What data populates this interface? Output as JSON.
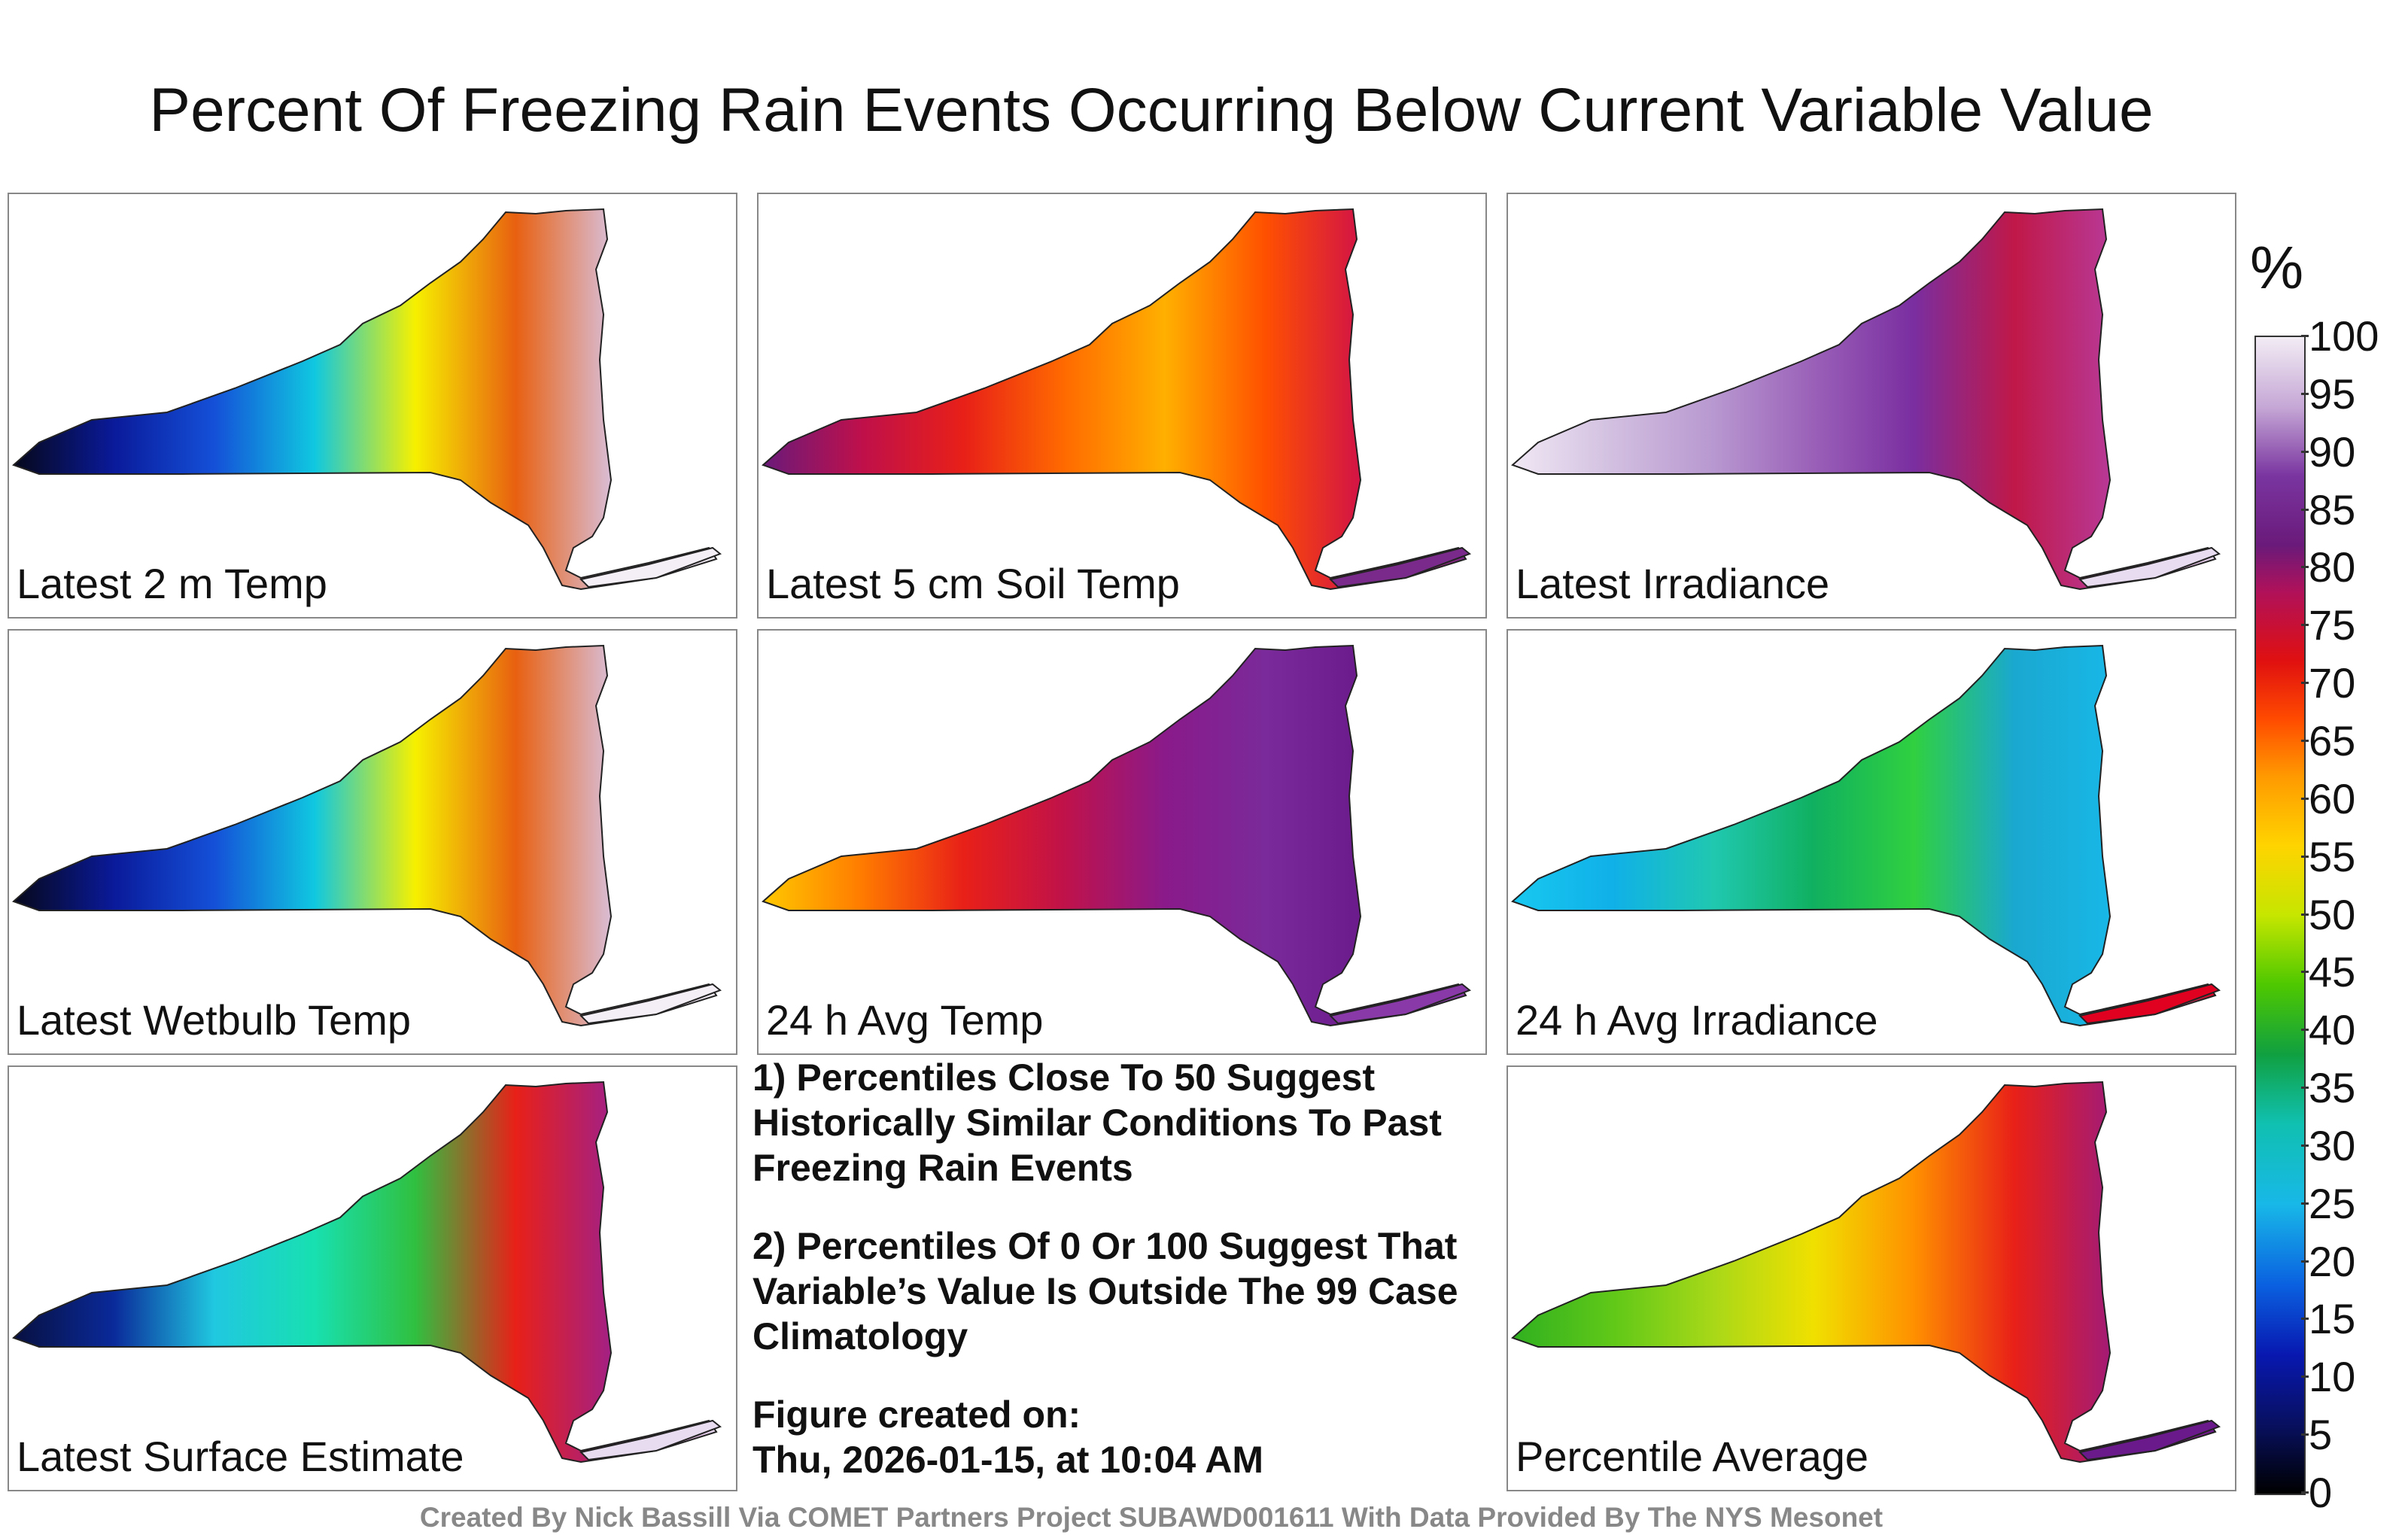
{
  "title": "Percent Of Freezing Rain Events Occurring Below Current Variable Value",
  "panels": [
    {
      "label": "Latest 2 m Temp",
      "scheme": "cold"
    },
    {
      "label": "Latest 5 cm Soil Temp",
      "scheme": "hot"
    },
    {
      "label": "Latest Irradiance",
      "scheme": "purple"
    },
    {
      "label": "Latest Wetbulb Temp",
      "scheme": "cold"
    },
    {
      "label": "24 h Avg Temp",
      "scheme": "hot2"
    },
    {
      "label": "24 h Avg Irradiance",
      "scheme": "bluegreen"
    },
    {
      "label": "Latest Surface Estimate",
      "scheme": "mix"
    },
    {
      "label": "Percentile Average",
      "scheme": "avg"
    }
  ],
  "notes": {
    "note1": "1) Percentiles Close To 50 Suggest Historically Similar Conditions To Past Freezing Rain Events",
    "note2": "2) Percentiles Of 0 Or 100 Suggest That Variable’s Value Is Outside The 99 Case Climatology",
    "created_label": "Figure created on:",
    "created_value": "Thu, 2026-01-15, at 10:04 AM"
  },
  "colorbar": {
    "unit": "%",
    "ticks": [
      "100",
      "95",
      "90",
      "85",
      "80",
      "75",
      "70",
      "65",
      "60",
      "55",
      "50",
      "45",
      "40",
      "35",
      "30",
      "25",
      "20",
      "15",
      "10",
      "5",
      "0"
    ]
  },
  "footer": "Created By Nick Bassill Via COMET Partners Project SUBAWD001611 With Data Provided By The NYS Mesonet"
}
